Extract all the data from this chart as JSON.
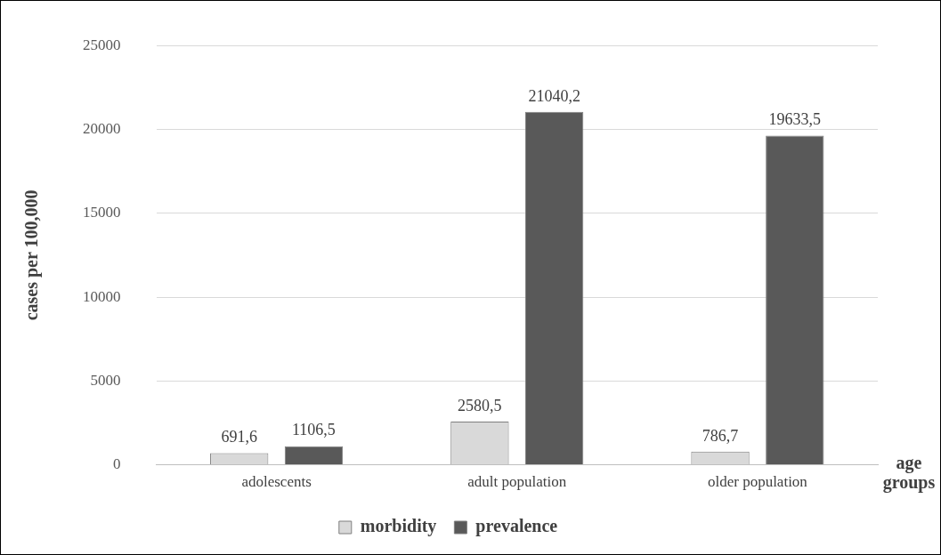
{
  "chart_data": {
    "type": "bar",
    "xlabel": "age groups",
    "ylabel": "cases per 100,000",
    "categories": [
      "adolescents",
      "adult population",
      "older population"
    ],
    "series": [
      {
        "name": "morbidity",
        "color": "#d9d9d9",
        "values": [
          691.6,
          2580.5,
          786.7
        ],
        "value_labels": [
          "691,6",
          "2580,5",
          "786,7"
        ]
      },
      {
        "name": "prevalence",
        "color": "#595959",
        "values": [
          1106.5,
          21040.2,
          19633.5
        ],
        "value_labels": [
          "1106,5",
          "21040,2",
          "19633,5"
        ]
      }
    ],
    "ylim": [
      0,
      25000
    ],
    "yticks": [
      0,
      5000,
      10000,
      15000,
      20000,
      25000
    ],
    "grid": "y",
    "legend": "bottom"
  }
}
